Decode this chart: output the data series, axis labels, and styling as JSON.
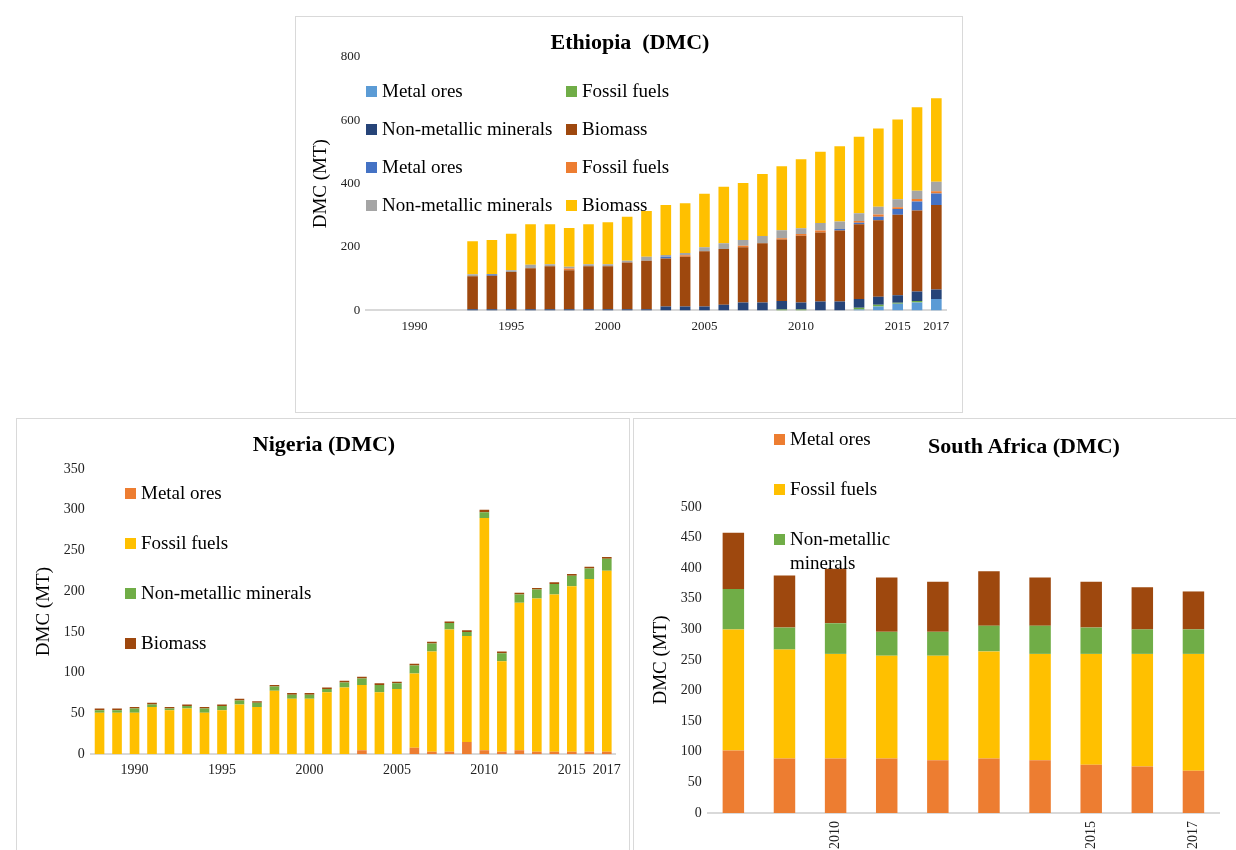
{
  "chart_data": [
    {
      "type": "bar",
      "stacked": true,
      "title": "Ethiopia  (DMC)",
      "ylabel": "DMC (MT)",
      "legend": "top left",
      "grid": false,
      "ylim": [
        0,
        800
      ],
      "yticks": [
        0,
        200,
        400,
        600,
        800
      ],
      "categories": [
        null,
        null,
        "1990",
        null,
        null,
        null,
        null,
        "1995",
        null,
        null,
        null,
        null,
        "2000",
        null,
        null,
        null,
        null,
        "2005",
        null,
        null,
        null,
        null,
        "2010",
        null,
        null,
        null,
        null,
        "2015",
        null,
        "2017"
      ],
      "series": [
        {
          "name": "Metal ores",
          "color": "#5b9bd5",
          "values": [
            null,
            null,
            null,
            null,
            null,
            0,
            0,
            0,
            0,
            0,
            0,
            0,
            0,
            0,
            0,
            0,
            0,
            0,
            0,
            0,
            0,
            0,
            0,
            null,
            null,
            3,
            12,
            21,
            25,
            36
          ]
        },
        {
          "name": "Fossil fuels",
          "color": "#70ad47",
          "values": [
            null,
            null,
            null,
            null,
            null,
            0,
            0,
            0,
            0,
            0,
            0,
            0,
            0,
            0,
            0,
            0,
            0,
            0,
            0,
            0,
            0,
            3,
            3,
            0,
            0,
            5,
            6,
            3,
            5,
            0
          ]
        },
        {
          "name": "Non-metallic minerals",
          "color": "#264478",
          "values": [
            null,
            null,
            null,
            null,
            null,
            4,
            4,
            4,
            4,
            4,
            4,
            4,
            4,
            4,
            4,
            12,
            12,
            12,
            18,
            25,
            25,
            27,
            22,
            28,
            28,
            28,
            25,
            24,
            30,
            30
          ]
        },
        {
          "name": "Biomass",
          "color": "#9e480e",
          "values": [
            null,
            null,
            null,
            null,
            null,
            104,
            105,
            117,
            129,
            135,
            123,
            135,
            135,
            147,
            153,
            152,
            157,
            175,
            176,
            174,
            187,
            194,
            211,
            218,
            224,
            236,
            242,
            254,
            255,
            267
          ]
        },
        {
          "name": "Metal ores",
          "color": "#4472c4",
          "values": [
            null,
            null,
            null,
            null,
            null,
            0,
            5,
            0,
            0,
            0,
            0,
            0,
            0,
            0,
            0,
            5,
            0,
            0,
            0,
            0,
            0,
            0,
            0,
            0,
            5,
            5,
            11,
            18,
            29,
            36
          ]
        },
        {
          "name": "Fossil fuels",
          "color": "#ed7d31",
          "values": [
            null,
            null,
            null,
            null,
            null,
            0,
            0,
            0,
            0,
            0,
            5,
            0,
            0,
            0,
            0,
            0,
            5,
            0,
            0,
            5,
            0,
            4,
            5,
            6,
            0,
            5,
            7,
            6,
            8,
            7
          ]
        },
        {
          "name": "Non-metallic minerals",
          "color": "#a5a5a5",
          "values": [
            null,
            null,
            null,
            null,
            null,
            6,
            null,
            6,
            11,
            7,
            6,
            7,
            7,
            6,
            12,
            6,
            7,
            12,
            18,
            18,
            23,
            25,
            18,
            24,
            24,
            25,
            24,
            25,
            26,
            30
          ]
        },
        {
          "name": "Biomass",
          "color": "#ffc000",
          "values": [
            null,
            null,
            null,
            null,
            null,
            104,
            108,
            115,
            128,
            126,
            122,
            126,
            132,
            139,
            145,
            158,
            157,
            169,
            178,
            180,
            196,
            202,
            218,
            225,
            237,
            241,
            247,
            252,
            263,
            264
          ]
        }
      ]
    },
    {
      "type": "bar",
      "stacked": true,
      "title": "Nigeria (DMC)",
      "ylabel": "DMC (MT)",
      "legend": "top left",
      "grid": false,
      "ylim": [
        0,
        350
      ],
      "yticks": [
        0,
        50,
        100,
        150,
        200,
        250,
        300,
        350
      ],
      "categories": [
        null,
        null,
        "1990",
        null,
        null,
        null,
        null,
        "1995",
        null,
        null,
        null,
        null,
        "2000",
        null,
        null,
        null,
        null,
        "2005",
        null,
        null,
        null,
        null,
        "2010",
        null,
        null,
        null,
        null,
        "2015",
        null,
        "2017"
      ],
      "series": [
        {
          "name": "Metal ores",
          "color": "#ed7d31",
          "values": [
            0,
            0,
            0,
            0,
            0,
            0,
            0,
            0,
            0,
            0,
            0,
            0,
            0,
            0,
            0,
            5,
            0,
            0,
            8,
            3,
            3,
            15,
            5,
            3,
            5,
            3,
            3,
            3,
            3,
            3
          ]
        },
        {
          "name": "Fossil fuels",
          "color": "#ffc000",
          "values": [
            51,
            51,
            51,
            58,
            54,
            56,
            51,
            54,
            61,
            58,
            78,
            68,
            68,
            76,
            82,
            80,
            76,
            80,
            91,
            123,
            150,
            130,
            285,
            111,
            181,
            188,
            193,
            203,
            212,
            222
          ]
        },
        {
          "name": "Non-metallic minerals",
          "color": "#70ad47",
          "values": [
            3,
            3,
            5,
            3,
            2,
            3,
            5,
            5,
            5,
            5,
            5,
            5,
            5,
            4,
            6,
            8,
            9,
            7,
            10,
            10,
            8,
            5,
            7,
            10,
            10,
            11,
            13,
            13,
            13,
            15
          ]
        },
        {
          "name": "Biomass",
          "color": "#9e480e",
          "values": [
            2,
            2,
            2,
            2,
            2,
            2,
            2,
            2,
            2,
            2,
            2,
            2,
            2,
            2,
            2,
            2,
            2,
            2,
            2,
            2,
            2,
            2,
            3,
            2,
            2,
            2,
            2,
            2,
            2,
            2
          ]
        }
      ]
    },
    {
      "type": "bar",
      "stacked": true,
      "title": "South Africa (DMC)",
      "ylabel": "DMC (MT)",
      "legend": "top left",
      "grid": false,
      "ylim": [
        0,
        500
      ],
      "yticks": [
        0,
        50,
        100,
        150,
        200,
        250,
        300,
        350,
        400,
        450,
        500
      ],
      "categories": [
        null,
        null,
        "2010",
        null,
        null,
        null,
        null,
        "2015",
        null,
        "2017"
      ],
      "series": [
        {
          "name": "Metal ores",
          "color": "#ed7d31",
          "values": [
            102,
            89,
            89,
            89,
            86,
            89,
            86,
            79,
            76,
            69
          ]
        },
        {
          "name": "Fossil fuels",
          "color": "#ffc000",
          "values": [
            198,
            178,
            171,
            168,
            171,
            175,
            174,
            181,
            184,
            191
          ]
        },
        {
          "name": "Non-metallic minerals",
          "color": "#70ad47",
          "values": [
            66,
            36,
            50,
            39,
            39,
            42,
            46,
            43,
            40,
            40
          ]
        },
        {
          "color": "#9e480e",
          "values": [
            92,
            85,
            89,
            89,
            82,
            89,
            79,
            75,
            69,
            62
          ]
        }
      ]
    }
  ]
}
